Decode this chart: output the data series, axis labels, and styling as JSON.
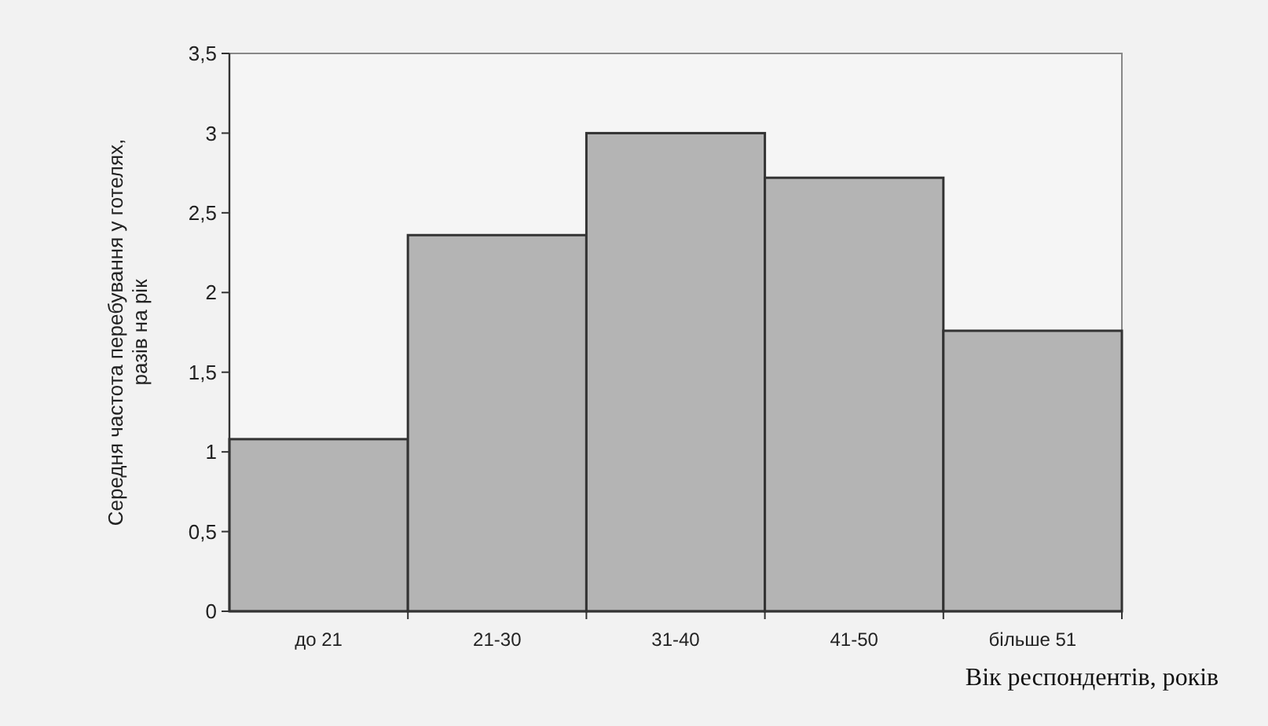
{
  "chart_data": {
    "type": "bar",
    "xlabel": "Вік респондентів, років",
    "ylabel": "Середня частота перебування у готелях, разів на рік",
    "categories": [
      "до 21",
      "21-30",
      "31-40",
      "41-50",
      "більше 51"
    ],
    "values": [
      1.08,
      2.36,
      3.0,
      2.72,
      1.76
    ],
    "color": "#b4b4b4",
    "ylim": [
      0,
      3.5
    ],
    "yticks": [
      0,
      {
        "value": 0.5,
        "label": "0,5"
      },
      1,
      {
        "value": 1.5,
        "label": "1,5"
      },
      2,
      {
        "value": 2.5,
        "label": "2,5"
      },
      3,
      {
        "value": 3.5,
        "label": "3,5"
      }
    ],
    "grid": false
  }
}
